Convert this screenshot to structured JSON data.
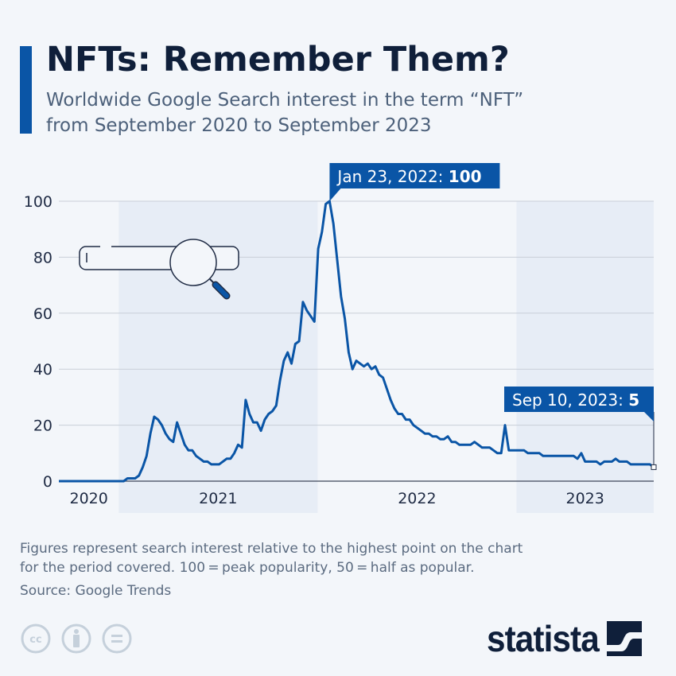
{
  "header": {
    "title": "NFTs: Remember Them?",
    "subtitle_line1": "Worldwide Google Search interest in the term “NFT”",
    "subtitle_line2": "from September 2020 to September 2023"
  },
  "footer": {
    "note_line1": "Figures represent search interest relative to the highest point on the chart",
    "note_line2": "for the period covered. 100 = peak popularity, 50 = half as popular.",
    "source": "Source: Google Trends",
    "license_icons": [
      "cc-icon",
      "attribution-icon",
      "no-derivatives-icon"
    ],
    "logo": "statista"
  },
  "colors": {
    "line": "#0a55a6",
    "accent": "#0a55a6",
    "band": "#e7edf6",
    "text": "#0f1f3a"
  },
  "chart_data": {
    "type": "line",
    "title": "NFTs: Remember Them?",
    "xlabel": "",
    "ylabel": "",
    "ylim": [
      0,
      100
    ],
    "yticks": [
      "0",
      "20",
      "40",
      "60",
      "80",
      "100"
    ],
    "xtick_labels": [
      "2020",
      "2021",
      "2022",
      "2023"
    ],
    "grid": true,
    "shaded_years": [
      "2021",
      "2023"
    ],
    "annotations": [
      {
        "date": "2022-01-23",
        "label": "Jan 23, 2022: ",
        "value_label": "100"
      },
      {
        "date": "2023-09-10",
        "label": "Sep 10, 2023: ",
        "value_label": "5"
      }
    ],
    "series": [
      {
        "dates": [
          "2020-09-13",
          "2020-09-20",
          "2020-09-27",
          "2020-10-04",
          "2020-10-11",
          "2020-10-18",
          "2020-10-25",
          "2020-11-01",
          "2020-11-08",
          "2020-11-15",
          "2020-11-22",
          "2020-11-29",
          "2020-12-06",
          "2020-12-13",
          "2020-12-20",
          "2020-12-27",
          "2021-01-03",
          "2021-01-10",
          "2021-01-17",
          "2021-01-24",
          "2021-01-31",
          "2021-02-07",
          "2021-02-14",
          "2021-02-21",
          "2021-02-28",
          "2021-03-07",
          "2021-03-14",
          "2021-03-21",
          "2021-03-28",
          "2021-04-04",
          "2021-04-11",
          "2021-04-18",
          "2021-04-25",
          "2021-05-02",
          "2021-05-09",
          "2021-05-16",
          "2021-05-23",
          "2021-05-30",
          "2021-06-06",
          "2021-06-13",
          "2021-06-20",
          "2021-06-27",
          "2021-07-04",
          "2021-07-11",
          "2021-07-18",
          "2021-07-25",
          "2021-08-01",
          "2021-08-08",
          "2021-08-15",
          "2021-08-22",
          "2021-08-29",
          "2021-09-05",
          "2021-09-12",
          "2021-09-19",
          "2021-09-26",
          "2021-10-03",
          "2021-10-10",
          "2021-10-17",
          "2021-10-24",
          "2021-10-31",
          "2021-11-07",
          "2021-11-14",
          "2021-11-21",
          "2021-11-28",
          "2021-12-05",
          "2021-12-12",
          "2021-12-19",
          "2021-12-26",
          "2022-01-02",
          "2022-01-09",
          "2022-01-16",
          "2022-01-23",
          "2022-01-30",
          "2022-02-06",
          "2022-02-13",
          "2022-02-20",
          "2022-02-27",
          "2022-03-06",
          "2022-03-13",
          "2022-03-20",
          "2022-03-27",
          "2022-04-03",
          "2022-04-10",
          "2022-04-17",
          "2022-04-24",
          "2022-05-01",
          "2022-05-08",
          "2022-05-15",
          "2022-05-22",
          "2022-05-29",
          "2022-06-05",
          "2022-06-12",
          "2022-06-19",
          "2022-06-26",
          "2022-07-03",
          "2022-07-10",
          "2022-07-17",
          "2022-07-24",
          "2022-07-31",
          "2022-08-07",
          "2022-08-14",
          "2022-08-21",
          "2022-08-28",
          "2022-09-04",
          "2022-09-11",
          "2022-09-18",
          "2022-09-25",
          "2022-10-02",
          "2022-10-09",
          "2022-10-16",
          "2022-10-23",
          "2022-10-30",
          "2022-11-06",
          "2022-11-13",
          "2022-11-20",
          "2022-11-27",
          "2022-12-04",
          "2022-12-11",
          "2022-12-18",
          "2022-12-25",
          "2023-01-01",
          "2023-01-08",
          "2023-01-15",
          "2023-01-22",
          "2023-01-29",
          "2023-02-05",
          "2023-02-12",
          "2023-02-19",
          "2023-02-26",
          "2023-03-05",
          "2023-03-12",
          "2023-03-19",
          "2023-03-26",
          "2023-04-02",
          "2023-04-09",
          "2023-04-16",
          "2023-04-23",
          "2023-04-30",
          "2023-05-07",
          "2023-05-14",
          "2023-05-21",
          "2023-05-28",
          "2023-06-04",
          "2023-06-11",
          "2023-06-18",
          "2023-06-25",
          "2023-07-02",
          "2023-07-09",
          "2023-07-16",
          "2023-07-23",
          "2023-07-30",
          "2023-08-06",
          "2023-08-13",
          "2023-08-20",
          "2023-08-27",
          "2023-09-03",
          "2023-09-10"
        ],
        "values": [
          0,
          0,
          0,
          0,
          0,
          0,
          0,
          0,
          0,
          0,
          0,
          0,
          0,
          0,
          0,
          0,
          0,
          0,
          1,
          1,
          1,
          2,
          5,
          9,
          17,
          23,
          22,
          20,
          17,
          15,
          14,
          21,
          17,
          13,
          11,
          11,
          9,
          8,
          7,
          7,
          6,
          6,
          6,
          7,
          8,
          8,
          10,
          13,
          12,
          29,
          24,
          21,
          21,
          18,
          22,
          24,
          25,
          27,
          36,
          43,
          46,
          42,
          49,
          50,
          64,
          61,
          59,
          57,
          83,
          89,
          99,
          100,
          92,
          79,
          66,
          58,
          46,
          40,
          43,
          42,
          41,
          42,
          40,
          41,
          38,
          37,
          33,
          29,
          26,
          24,
          24,
          22,
          22,
          20,
          19,
          18,
          17,
          17,
          16,
          16,
          15,
          15,
          16,
          14,
          14,
          13,
          13,
          13,
          13,
          14,
          13,
          12,
          12,
          12,
          11,
          10,
          10,
          20,
          11,
          11,
          11,
          11,
          11,
          10,
          10,
          10,
          10,
          9,
          9,
          9,
          9,
          9,
          9,
          9,
          9,
          9,
          8,
          10,
          7,
          7,
          7,
          7,
          6,
          7,
          7,
          7,
          8,
          7,
          7,
          7,
          6,
          6,
          6,
          6,
          6,
          6,
          5
        ]
      }
    ]
  }
}
